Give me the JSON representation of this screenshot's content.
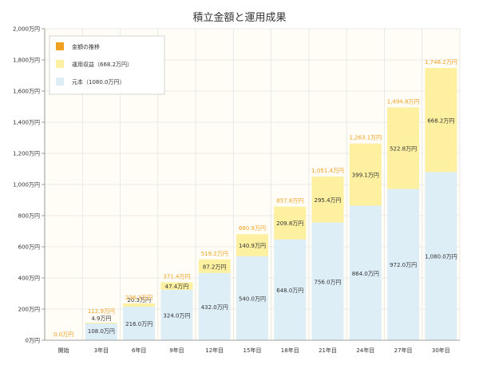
{
  "chart_data": {
    "type": "bar",
    "title": "積立金額と運用成果",
    "categories": [
      "開始",
      "3年目",
      "6年目",
      "9年目",
      "12年目",
      "15年目",
      "18年目",
      "21年目",
      "24年目",
      "27年目",
      "30年目"
    ],
    "y_ticks": [
      "0万円",
      "200万円",
      "400万円",
      "600万円",
      "800万円",
      "1,000万円",
      "1,200万円",
      "1,400万円",
      "1,600万円",
      "1,800万円",
      "2,000万円"
    ],
    "ylim": [
      0,
      2000
    ],
    "grid": true,
    "legend_position": "top-left",
    "series": [
      {
        "name": "元本（1080.0万円）",
        "color": "#deeef7",
        "values": [
          0,
          108.0,
          216.0,
          324.0,
          432.0,
          540.0,
          648.0,
          756.0,
          864.0,
          972.0,
          1080.0
        ],
        "labels": [
          "",
          "108.0万円",
          "216.0万円",
          "324.0万円",
          "432.0万円",
          "540.0万円",
          "648.0万円",
          "756.0万円",
          "864.0万円",
          "972.0万円",
          "1,080.0万円"
        ]
      },
      {
        "name": "運用収益（668.2万円）",
        "color": "#fdf0a0",
        "values": [
          0,
          4.9,
          20.3,
          47.4,
          87.2,
          140.9,
          209.8,
          295.4,
          399.1,
          522.8,
          668.2
        ],
        "labels": [
          "",
          "4.9万円",
          "20.3万円",
          "47.4万円",
          "87.2万円",
          "140.9万円",
          "209.8万円",
          "295.4万円",
          "399.1万円",
          "522.8万円",
          "668.2万円"
        ]
      }
    ],
    "totals": {
      "name": "金額の推移",
      "color": "#f0a020",
      "values": [
        0,
        112.9,
        236.3,
        371.4,
        519.2,
        680.9,
        857.8,
        1051.4,
        1263.1,
        1494.8,
        1748.2
      ],
      "labels": [
        "0.0万円",
        "112.9万円",
        "236.3万円",
        "371.4万円",
        "519.2万円",
        "680.9万円",
        "857.8万円",
        "1,051.4万円",
        "1,263.1万円",
        "1,494.8万円",
        "1,748.2万円"
      ]
    }
  }
}
